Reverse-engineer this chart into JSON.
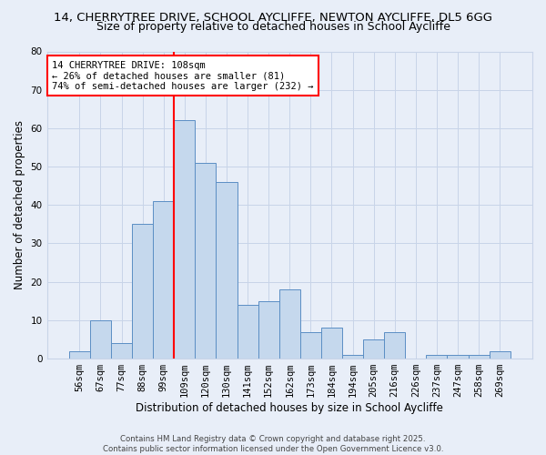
{
  "title_line1": "14, CHERRYTREE DRIVE, SCHOOL AYCLIFFE, NEWTON AYCLIFFE, DL5 6GG",
  "title_line2": "Size of property relative to detached houses in School Aycliffe",
  "xlabel": "Distribution of detached houses by size in School Aycliffe",
  "ylabel": "Number of detached properties",
  "categories": [
    "56sqm",
    "67sqm",
    "77sqm",
    "88sqm",
    "99sqm",
    "109sqm",
    "120sqm",
    "130sqm",
    "141sqm",
    "152sqm",
    "162sqm",
    "173sqm",
    "184sqm",
    "194sqm",
    "205sqm",
    "216sqm",
    "226sqm",
    "237sqm",
    "247sqm",
    "258sqm",
    "269sqm"
  ],
  "values": [
    2,
    10,
    4,
    35,
    41,
    62,
    51,
    46,
    14,
    15,
    18,
    7,
    8,
    1,
    5,
    7,
    0,
    1,
    1,
    1,
    2
  ],
  "bar_color": "#c5d8ed",
  "bar_edge_color": "#5b8ec4",
  "vline_color": "red",
  "vline_x_index": 5.0,
  "annotation_text": "14 CHERRYTREE DRIVE: 108sqm\n← 26% of detached houses are smaller (81)\n74% of semi-detached houses are larger (232) →",
  "annotation_box_color": "white",
  "annotation_box_edge_color": "red",
  "ylim": [
    0,
    80
  ],
  "yticks": [
    0,
    10,
    20,
    30,
    40,
    50,
    60,
    70,
    80
  ],
  "grid_color": "#c8d4e8",
  "background_color": "#e8eef8",
  "footnote": "Contains HM Land Registry data © Crown copyright and database right 2025.\nContains public sector information licensed under the Open Government Licence v3.0.",
  "title_fontsize": 9.5,
  "subtitle_fontsize": 9,
  "axis_label_fontsize": 8.5,
  "tick_fontsize": 7.5,
  "annotation_fontsize": 7.5
}
